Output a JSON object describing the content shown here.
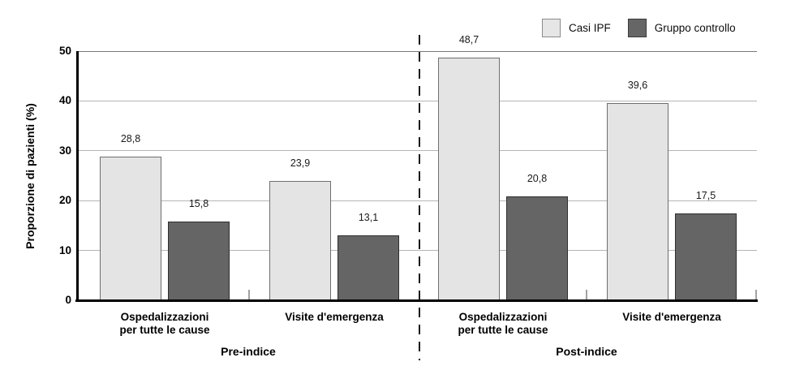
{
  "figure": {
    "background": "#ffffff",
    "text_color": "#000000",
    "axis_color": "#000000",
    "gridline_color": "#b5b5b5"
  },
  "legend": {
    "items": [
      {
        "label": "Casi IPF",
        "swatch_color": "#e6e6e6",
        "swatch_border": "#8a8a8a"
      },
      {
        "label": "Gruppo controllo",
        "swatch_color": "#666666",
        "swatch_border": "#3a3a3a"
      }
    ]
  },
  "chart_data": {
    "type": "bar",
    "title": "",
    "xlabel": "",
    "ylabel": "Proporzione di pazienti (%)",
    "ylim": [
      0,
      50
    ],
    "yticks": [
      0,
      10,
      20,
      30,
      40,
      50
    ],
    "ytick_labels": [
      "0",
      "10",
      "20",
      "30",
      "40",
      "50"
    ],
    "grid": "horizontal",
    "legend_position": "top-right",
    "decimal_separator": ",",
    "series_names": [
      "Casi IPF",
      "Gruppo controllo"
    ],
    "series_colors": [
      "#e4e4e4",
      "#656565"
    ],
    "divider": "dashed vertical line between Pre-indice and Post-indice",
    "groups": [
      {
        "label": "Pre-indice",
        "categories": [
          {
            "label": "Ospedalizzazioni\nper tutte le cause",
            "values": [
              28.8,
              15.8
            ],
            "value_labels": [
              "28,8",
              "15,8"
            ]
          },
          {
            "label": "Visite d'emergenza",
            "values": [
              23.9,
              13.1
            ],
            "value_labels": [
              "23,9",
              "13,1"
            ]
          }
        ]
      },
      {
        "label": "Post-indice",
        "categories": [
          {
            "label": "Ospedalizzazioni\nper tutte le cause",
            "values": [
              48.7,
              20.8
            ],
            "value_labels": [
              "48,7",
              "20,8"
            ]
          },
          {
            "label": "Visite d'emergenza",
            "values": [
              39.6,
              17.5
            ],
            "value_labels": [
              "39,6",
              "17,5"
            ]
          }
        ]
      }
    ]
  }
}
